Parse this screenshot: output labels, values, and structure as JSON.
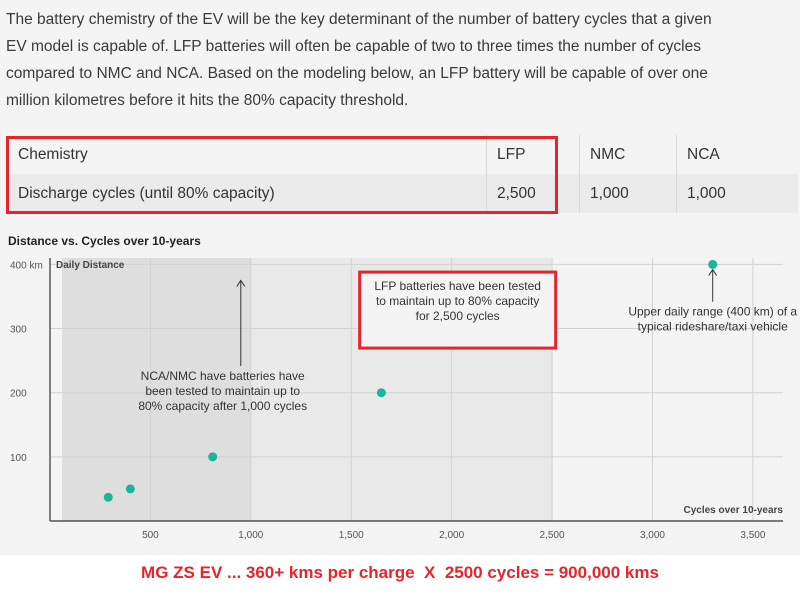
{
  "intro": {
    "lines": [
      "The battery chemistry of the EV will be the key determinant of the number of battery cycles that a given",
      "EV model is capable of. LFP batteries will often be capable of two to three times the number of cycles",
      "compared to NMC and NCA. Based on the modeling below, an LFP battery will be capable of over one",
      "million kilometres before it hits the 80% capacity threshold."
    ]
  },
  "table": {
    "header": [
      "Chemistry",
      "LFP",
      "NMC",
      "NCA"
    ],
    "row": [
      "Discharge cycles (until 80% capacity)",
      "2,500",
      "1,000",
      "1,000"
    ]
  },
  "colors": {
    "highlight": "#e8242a",
    "point": "#1bb69a",
    "shade": "#e3e3e3"
  },
  "footer": {
    "note": "MG ZS EV ... 360+ kms per charge  X  2500 cycles = 900,000 kms"
  },
  "chart_data": {
    "type": "scatter",
    "title": "Distance vs. Cycles over 10-years",
    "xlabel": "Cycles over 10-years",
    "ylabel": "Daily Distance",
    "xlim": [
      0,
      3650
    ],
    "ylim": [
      0,
      410
    ],
    "xticks": [
      500,
      1000,
      1500,
      2000,
      2500,
      3000,
      3500
    ],
    "xtick_labels": [
      "500",
      "1,000",
      "1,500",
      "2,000",
      "2,500",
      "3,000",
      "3,500"
    ],
    "yticks": [
      100,
      200,
      300,
      400
    ],
    "ytick_labels": [
      "100",
      "200",
      "300",
      "400 km"
    ],
    "grid": true,
    "points": [
      {
        "x": 290,
        "y": 37
      },
      {
        "x": 400,
        "y": 50
      },
      {
        "x": 810,
        "y": 100
      },
      {
        "x": 1650,
        "y": 200
      },
      {
        "x": 3300,
        "y": 400
      }
    ],
    "shaded_regions": [
      {
        "x0": 60,
        "x1": 2500,
        "shade": "light"
      },
      {
        "x0": 60,
        "x1": 1000,
        "shade": "dark"
      }
    ],
    "annotations": [
      {
        "text": [
          "LFP batteries have been tested",
          "to maintain up to 80% capacity",
          "for 2,500 cycles"
        ],
        "x": 2030,
        "y": 360,
        "highlighted": true
      },
      {
        "text": [
          "NCA/NMC have batteries have",
          "been tested to maintain up to",
          "80% capacity after 1,000 cycles"
        ],
        "x": 860,
        "y": 220,
        "arrow_to": {
          "x": 950,
          "y": 375
        }
      },
      {
        "text": [
          "Upper daily range (400 km) of a",
          "typical rideshare/taxi vehicle"
        ],
        "x": 3300,
        "y": 320,
        "arrow_to": {
          "x": 3300,
          "y": 392
        }
      }
    ]
  }
}
